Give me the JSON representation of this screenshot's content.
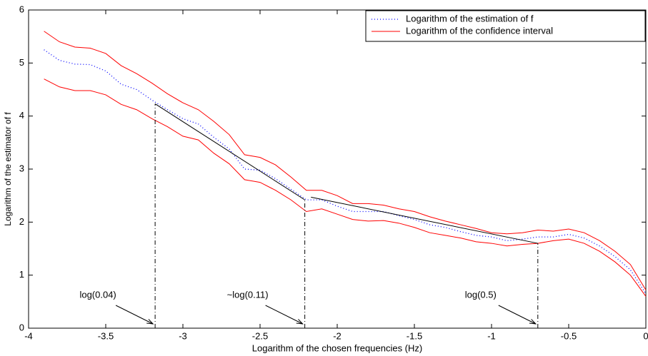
{
  "chart_data": {
    "type": "line",
    "xlabel": "Logarithm of the chosen frequencies (Hz)",
    "ylabel": "Logarithm of the estimator of f",
    "x": [
      -3.9,
      -3.8,
      -3.7,
      -3.6,
      -3.5,
      -3.4,
      -3.3,
      -3.2,
      -3.1,
      -3.0,
      -2.9,
      -2.8,
      -2.7,
      -2.6,
      -2.5,
      -2.4,
      -2.3,
      -2.2,
      -2.1,
      -2.0,
      -1.9,
      -1.8,
      -1.7,
      -1.6,
      -1.5,
      -1.4,
      -1.3,
      -1.2,
      -1.1,
      -1.0,
      -0.9,
      -0.8,
      -0.7,
      -0.6,
      -0.5,
      -0.4,
      -0.3,
      -0.2,
      -0.1,
      0
    ],
    "series": [
      {
        "name": "Logarithm of the estimation of f",
        "color": "#0000ff",
        "style": "dotted",
        "values": [
          5.25,
          5.05,
          4.98,
          4.97,
          4.85,
          4.6,
          4.5,
          4.3,
          4.12,
          3.95,
          3.85,
          3.6,
          3.38,
          3.0,
          2.98,
          2.82,
          2.62,
          2.42,
          2.42,
          2.3,
          2.2,
          2.2,
          2.2,
          2.12,
          2.05,
          1.95,
          1.9,
          1.82,
          1.75,
          1.72,
          1.65,
          1.68,
          1.72,
          1.72,
          1.77,
          1.7,
          1.55,
          1.35,
          1.1,
          0.65
        ]
      },
      {
        "name": "Logarithm of the confidence interval",
        "color": "#ff0000",
        "style": "solid",
        "upper": [
          5.6,
          5.4,
          5.3,
          5.28,
          5.18,
          4.95,
          4.8,
          4.62,
          4.42,
          4.25,
          4.12,
          3.9,
          3.65,
          3.27,
          3.22,
          3.08,
          2.85,
          2.6,
          2.6,
          2.5,
          2.35,
          2.35,
          2.32,
          2.25,
          2.2,
          2.1,
          2.02,
          1.95,
          1.88,
          1.8,
          1.78,
          1.8,
          1.85,
          1.83,
          1.87,
          1.8,
          1.65,
          1.45,
          1.2,
          0.72
        ],
        "lower": [
          4.7,
          4.55,
          4.48,
          4.48,
          4.4,
          4.22,
          4.12,
          3.95,
          3.8,
          3.62,
          3.55,
          3.3,
          3.1,
          2.8,
          2.75,
          2.6,
          2.42,
          2.2,
          2.25,
          2.15,
          2.05,
          2.02,
          2.03,
          1.98,
          1.9,
          1.8,
          1.75,
          1.7,
          1.63,
          1.6,
          1.55,
          1.58,
          1.6,
          1.65,
          1.68,
          1.6,
          1.45,
          1.25,
          1.0,
          0.6
        ]
      }
    ],
    "fit_lines": [
      {
        "color": "#000000",
        "x": [
          -3.18,
          -2.21
        ],
        "y": [
          4.23,
          2.42
        ]
      },
      {
        "color": "#000000",
        "x": [
          -2.17,
          -0.7
        ],
        "y": [
          2.47,
          1.6
        ]
      }
    ],
    "annotations": [
      {
        "text": "log(0.04)",
        "x": -3.18,
        "y": 4.23
      },
      {
        "text": "~log(0.11)",
        "x": -2.21,
        "y": 2.42
      },
      {
        "text": "log(0.5)",
        "x": -0.7,
        "y": 1.6
      }
    ],
    "xlim": [
      -4,
      0
    ],
    "xticks": [
      -4,
      -3.5,
      -3,
      -2.5,
      -2,
      -1.5,
      -1,
      -0.5,
      0
    ],
    "ylim": [
      0,
      6
    ],
    "yticks": [
      0,
      1,
      2,
      3,
      4,
      5,
      6
    ],
    "legend": "upper right",
    "grid": false
  }
}
